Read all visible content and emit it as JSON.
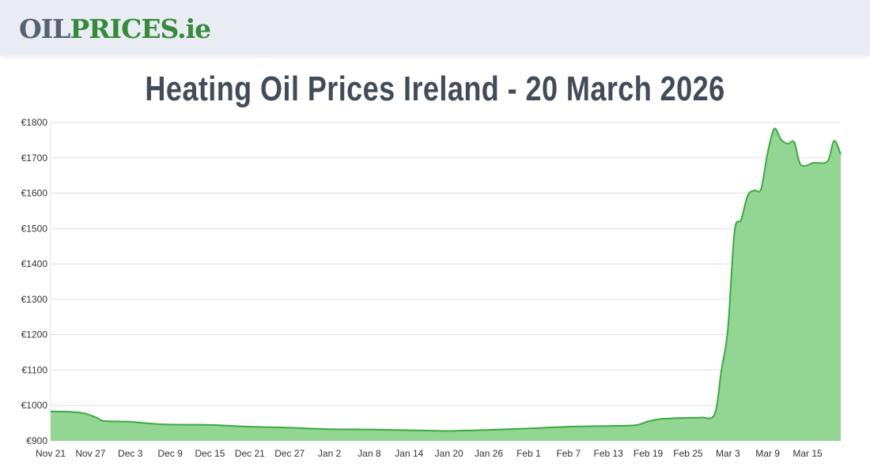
{
  "header": {
    "logo_part1": "OIL",
    "logo_part2": "PRICES.ie"
  },
  "page_title": "Heating Oil Prices Ireland - 20 March 2026",
  "chart_data": {
    "type": "area",
    "title": "Heating Oil Prices Ireland - 20 March 2026",
    "xlabel": "",
    "ylabel": "",
    "ylim": [
      900,
      1800
    ],
    "y_ticks": [
      "€900",
      "€1000",
      "€1100",
      "€1200",
      "€1300",
      "€1400",
      "€1500",
      "€1600",
      "€1700",
      "€1800"
    ],
    "x_ticks": [
      "Nov 21",
      "Nov 27",
      "Dec 3",
      "Dec 9",
      "Dec 15",
      "Dec 21",
      "Dec 27",
      "Jan 2",
      "Jan 8",
      "Jan 14",
      "Jan 20",
      "Jan 26",
      "Feb 1",
      "Feb 7",
      "Feb 13",
      "Feb 19",
      "Feb 25",
      "Mar 3",
      "Mar 9",
      "Mar 15"
    ],
    "grid": true,
    "colors": {
      "line": "#3aaa3f",
      "fill": "#93d693"
    },
    "points": [
      [
        "2025-11-21",
        983
      ],
      [
        "2025-11-24",
        982
      ],
      [
        "2025-11-26",
        978
      ],
      [
        "2025-11-28",
        965
      ],
      [
        "2025-11-29",
        956
      ],
      [
        "2025-12-03",
        954
      ],
      [
        "2025-12-06",
        949
      ],
      [
        "2025-12-09",
        946
      ],
      [
        "2025-12-15",
        945
      ],
      [
        "2025-12-21",
        940
      ],
      [
        "2025-12-27",
        937
      ],
      [
        "2026-01-02",
        933
      ],
      [
        "2026-01-08",
        932
      ],
      [
        "2026-01-14",
        930
      ],
      [
        "2026-01-20",
        928
      ],
      [
        "2026-01-26",
        931
      ],
      [
        "2026-02-01",
        935
      ],
      [
        "2026-02-07",
        940
      ],
      [
        "2026-02-13",
        942
      ],
      [
        "2026-02-17",
        944
      ],
      [
        "2026-02-19",
        955
      ],
      [
        "2026-02-21",
        962
      ],
      [
        "2026-02-25",
        965
      ],
      [
        "2026-02-27",
        966
      ],
      [
        "2026-03-01",
        975
      ],
      [
        "2026-03-02",
        1096
      ],
      [
        "2026-03-03",
        1215
      ],
      [
        "2026-03-04",
        1491
      ],
      [
        "2026-03-05",
        1525
      ],
      [
        "2026-03-06",
        1594
      ],
      [
        "2026-03-07",
        1608
      ],
      [
        "2026-03-08",
        1612
      ],
      [
        "2026-03-09",
        1715
      ],
      [
        "2026-03-10",
        1782
      ],
      [
        "2026-03-11",
        1752
      ],
      [
        "2026-03-12",
        1740
      ],
      [
        "2026-03-13",
        1744
      ],
      [
        "2026-03-14",
        1680
      ],
      [
        "2026-03-16",
        1686
      ],
      [
        "2026-03-18",
        1690
      ],
      [
        "2026-03-19",
        1748
      ],
      [
        "2026-03-20",
        1710
      ]
    ]
  }
}
